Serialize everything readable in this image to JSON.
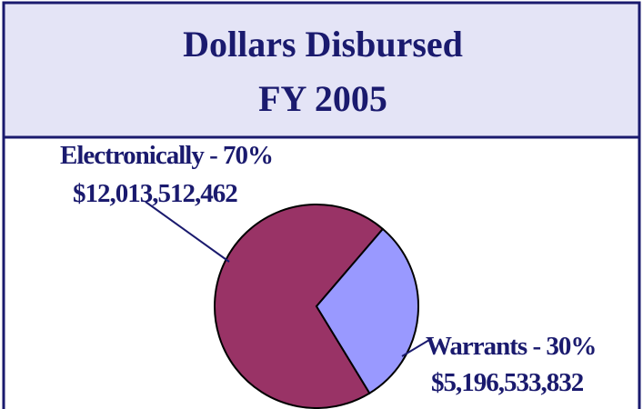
{
  "chart_data": {
    "type": "pie",
    "title": [
      "Dollars Disbursed",
      "FY 2005"
    ],
    "categories": [
      "Electronically",
      "Warrants"
    ],
    "values": [
      70,
      30
    ],
    "value_labels": [
      "Electronically - 70%",
      "Warrants - 30%"
    ],
    "amounts": [
      12013512462,
      5196533832
    ],
    "amount_labels": [
      "$12,013,512,462",
      "$5,196,533,832"
    ],
    "colors": [
      "#993366",
      "#9999ff"
    ]
  }
}
